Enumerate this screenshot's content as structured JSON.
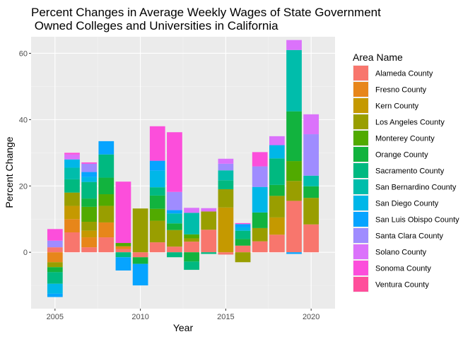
{
  "chart_data": {
    "type": "bar",
    "stacked": true,
    "title_line1": "Percent Changes in Average Weekly Wages of State Government",
    "title_line2": " Owned Colleges and Universities in California",
    "xlabel": "Year",
    "ylabel": "Percent Change",
    "xlim": [
      2003.6,
      2021.4
    ],
    "ylim": [
      -17,
      65
    ],
    "xticks": [
      2005,
      2010,
      2015,
      2020
    ],
    "yticks": [
      0,
      20,
      40,
      60
    ],
    "legend_title": "Area Name",
    "legend_position": "right",
    "grid": true,
    "years": [
      2005,
      2006,
      2007,
      2008,
      2009,
      2010,
      2011,
      2012,
      2013,
      2014,
      2015,
      2016,
      2017,
      2018,
      2019,
      2020
    ],
    "series": [
      {
        "name": "Alameda County",
        "color": "#F8766D",
        "values": [
          1.5,
          6,
          1.5,
          4.5,
          1,
          -1.5,
          3,
          1.7,
          3.2,
          6.8,
          -0.7,
          2,
          3.3,
          5.3,
          15.5,
          8.4
        ]
      },
      {
        "name": "Fresno County",
        "color": "#E7861A",
        "values": [
          -3,
          4,
          3,
          4.5,
          0.8,
          0,
          0,
          0,
          0,
          0,
          0,
          0,
          0,
          0,
          0,
          0
        ]
      },
      {
        "name": "Kern County",
        "color": "#C59900",
        "values": [
          0,
          4,
          2,
          0,
          0,
          0,
          0,
          0,
          0,
          0,
          13.5,
          0,
          0,
          5.2,
          0,
          0
        ]
      },
      {
        "name": "Los Angeles County",
        "color": "#999E00",
        "values": [
          -1.5,
          4,
          2.7,
          5,
          0,
          13.2,
          6.5,
          5,
          1,
          5.5,
          5.5,
          -3,
          4,
          6.5,
          6,
          8
        ]
      },
      {
        "name": "Monterey County",
        "color": "#51AA00",
        "values": [
          0,
          0,
          4.5,
          3.5,
          1,
          0,
          3.6,
          0,
          1.2,
          0,
          0,
          0,
          0,
          0,
          6,
          0
        ]
      },
      {
        "name": "Orange County",
        "color": "#12B33E",
        "values": [
          -1.5,
          0,
          2.5,
          5,
          0,
          -2,
          4,
          2,
          -2.8,
          0,
          0,
          2,
          4.7,
          3.3,
          15,
          3.5
        ]
      },
      {
        "name": "Sacramento County",
        "color": "#00B980",
        "values": [
          -3.5,
          4,
          5,
          7,
          -1.5,
          0,
          2.5,
          -1.5,
          -2.5,
          -0.5,
          2.7,
          2.5,
          0,
          8,
          0,
          0
        ]
      },
      {
        "name": "San Bernardino County",
        "color": "#00BDAB",
        "values": [
          0,
          3.5,
          0,
          0,
          0,
          0,
          0,
          3,
          6.5,
          0,
          3,
          0,
          0,
          0,
          18.5,
          3.2
        ]
      },
      {
        "name": "San Diego County",
        "color": "#00B7E8",
        "values": [
          -3,
          2.5,
          1.5,
          0,
          0,
          0,
          5,
          0,
          0,
          0,
          0,
          1,
          7.7,
          4,
          0,
          0
        ]
      },
      {
        "name": "San Luis Obispo County",
        "color": "#06A4FF",
        "values": [
          -1,
          0,
          1.5,
          4,
          -4,
          -6.5,
          3,
          1,
          0,
          0,
          0,
          1,
          0,
          0,
          -0.5,
          0
        ]
      },
      {
        "name": "Santa Clara County",
        "color": "#9F8CFF",
        "values": [
          2,
          0,
          2.5,
          0,
          0,
          0,
          0,
          5.5,
          0,
          0,
          2,
          0,
          6.2,
          0,
          0,
          12.5
        ]
      },
      {
        "name": "Solano County",
        "color": "#DB72FB",
        "values": [
          0,
          1.5,
          0,
          0,
          0,
          0,
          0,
          0,
          1.5,
          1,
          1.5,
          0,
          0,
          2.7,
          3,
          6
        ]
      },
      {
        "name": "Sonoma County",
        "color": "#FC4EDB",
        "values": [
          3.5,
          0.5,
          0.4,
          0,
          18.5,
          0,
          10.4,
          18,
          0,
          0,
          0,
          0.3,
          4.3,
          0,
          0,
          0
        ]
      },
      {
        "name": "Ventura County",
        "color": "#FF4E9B",
        "values": [
          0,
          0,
          0,
          0,
          0,
          0,
          0,
          0,
          0,
          0,
          0,
          0,
          0,
          0,
          0,
          0
        ]
      }
    ]
  }
}
